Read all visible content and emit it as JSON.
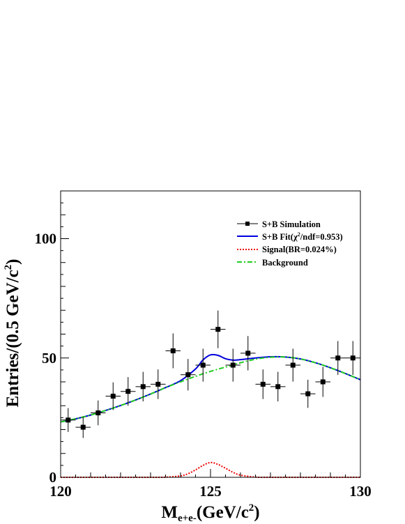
{
  "chart_data": {
    "type": "scatter",
    "x_axis": {
      "range": [
        120,
        130
      ],
      "ticks": [
        120,
        125,
        130
      ],
      "tick_labels": [
        "120",
        "125",
        "130"
      ],
      "title_main": "M",
      "title_sub": "e+e-",
      "title_rest": "(GeV/c",
      "title_sup": "2",
      "title_close": ")"
    },
    "y_axis": {
      "range": [
        0,
        120
      ],
      "ticks": [
        0,
        50,
        100
      ],
      "tick_labels": [
        "0",
        "50",
        "100"
      ],
      "title_main": "Entries/(0.5 GeV/c",
      "title_sup": "2",
      "title_close": ")"
    },
    "grid": false,
    "legend_position": "top-right",
    "legend": [
      {
        "key": "simulation",
        "text": "S+B Simulation",
        "style": "marker",
        "color": "#000000"
      },
      {
        "key": "fit",
        "text_pre": "S+B Fit(",
        "text_chi": "χ",
        "text_sup": "2",
        "text_post": "/ndf=0.953)",
        "style": "solid",
        "color": "#0000dd"
      },
      {
        "key": "signal",
        "text": "Signal(BR=0.024%)",
        "style": "dotted",
        "color": "#ee0000"
      },
      {
        "key": "background",
        "text": "Background",
        "style": "dashdot",
        "color": "#22cc22"
      }
    ],
    "series": [
      {
        "name": "S+B Simulation",
        "kind": "points",
        "x_halfwidth": 0.25,
        "points": [
          {
            "x": 120.25,
            "y": 24,
            "err": 5
          },
          {
            "x": 120.75,
            "y": 21,
            "err": 4.5
          },
          {
            "x": 121.25,
            "y": 27,
            "err": 5.2
          },
          {
            "x": 121.75,
            "y": 34,
            "err": 5.8
          },
          {
            "x": 122.25,
            "y": 36,
            "err": 6
          },
          {
            "x": 122.75,
            "y": 38,
            "err": 6.2
          },
          {
            "x": 123.25,
            "y": 39,
            "err": 6.2
          },
          {
            "x": 123.75,
            "y": 53,
            "err": 7.3
          },
          {
            "x": 124.25,
            "y": 43,
            "err": 6.6
          },
          {
            "x": 124.75,
            "y": 47,
            "err": 6.9
          },
          {
            "x": 125.25,
            "y": 62,
            "err": 7.9
          },
          {
            "x": 125.75,
            "y": 47,
            "err": 6.9
          },
          {
            "x": 126.25,
            "y": 52,
            "err": 7.2
          },
          {
            "x": 126.75,
            "y": 39,
            "err": 6.2
          },
          {
            "x": 127.25,
            "y": 38,
            "err": 6.2
          },
          {
            "x": 127.75,
            "y": 47,
            "err": 6.9
          },
          {
            "x": 128.25,
            "y": 35,
            "err": 5.9
          },
          {
            "x": 128.75,
            "y": 40,
            "err": 6.3
          },
          {
            "x": 129.25,
            "y": 50,
            "err": 7.1
          },
          {
            "x": 129.75,
            "y": 50,
            "err": 7.1
          }
        ]
      },
      {
        "name": "S+B Fit",
        "kind": "line",
        "color": "#0000dd",
        "x": [
          120,
          120.5,
          121,
          121.5,
          122,
          122.5,
          123,
          123.5,
          124,
          124.5,
          124.75,
          125,
          125.25,
          125.5,
          125.75,
          126,
          126.5,
          127,
          127.5,
          128,
          128.5,
          129,
          129.5,
          130
        ],
        "y": [
          23.2,
          24.5,
          26.1,
          28.0,
          30.1,
          32.4,
          34.9,
          37.6,
          40.5,
          45.4,
          49.2,
          51.3,
          51.1,
          49.7,
          49.1,
          49.3,
          50.0,
          50.5,
          50.4,
          49.6,
          48.0,
          45.9,
          43.5,
          40.9
        ]
      },
      {
        "name": "Signal(BR=0.024%)",
        "kind": "line",
        "color": "#ee0000",
        "x": [
          120,
          123,
          123.5,
          124,
          124.25,
          124.5,
          124.75,
          125,
          125.25,
          125.5,
          125.75,
          126,
          126.5,
          127,
          130
        ],
        "y": [
          0,
          0,
          0.05,
          0.6,
          1.5,
          3.1,
          5.0,
          6.2,
          5.4,
          3.8,
          2.1,
          0.9,
          0.1,
          0,
          0
        ]
      },
      {
        "name": "Background",
        "kind": "line",
        "color": "#22cc22",
        "x": [
          120,
          120.5,
          121,
          121.5,
          122,
          122.5,
          123,
          123.5,
          124,
          124.5,
          125,
          125.5,
          126,
          126.5,
          127,
          127.5,
          128,
          128.5,
          129,
          129.5,
          130
        ],
        "y": [
          23.2,
          24.5,
          26.1,
          28.0,
          30.1,
          32.4,
          34.9,
          37.6,
          40.0,
          42.3,
          44.4,
          46.2,
          48.0,
          49.5,
          50.3,
          50.4,
          49.6,
          48.0,
          45.9,
          43.5,
          40.9
        ]
      }
    ]
  }
}
